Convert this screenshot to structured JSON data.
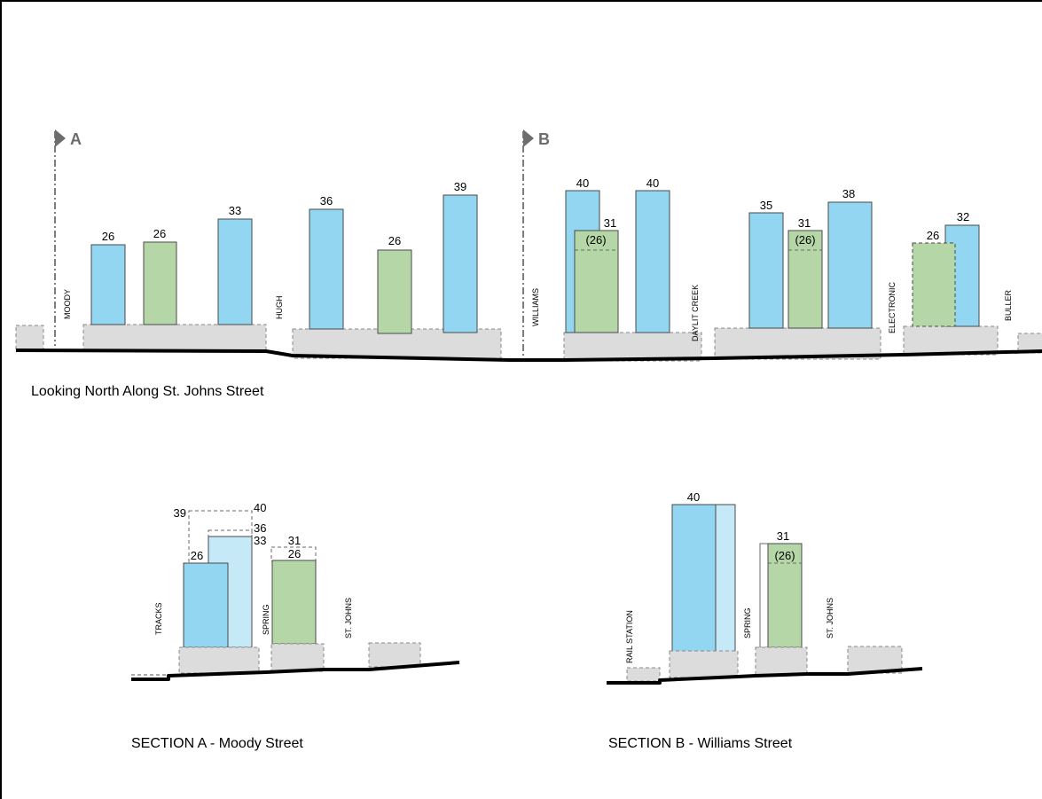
{
  "markers": {
    "a": "A",
    "b": "B"
  },
  "captions": {
    "elevation": "Looking North Along St. Johns Street",
    "section_a": "SECTION A - Moody Street",
    "section_b": "SECTION B - Williams Street"
  },
  "streets": {
    "moody": "MOODY",
    "hugh": "HUGH",
    "williams": "WILLIAMS",
    "daylit_creek": "DAYLIT CREEK",
    "electronic": "ELECTRONIC",
    "buller": "BULLER",
    "tracks": "TRACKS",
    "spring": "SPRING",
    "st_johns": "ST. JOHNS",
    "rail_station": "RAIL STATION"
  },
  "elevation_heights": {
    "b1": "26",
    "b2": "26",
    "b3": "33",
    "b4": "36",
    "b5": "26",
    "b6": "39",
    "b7": "40",
    "b7_inner": "31",
    "b7_inner_alt": "(26)",
    "b8": "40",
    "b9": "35",
    "b10": "31",
    "b10_alt": "(26)",
    "b11": "38",
    "b12": "26",
    "b13": "32"
  },
  "section_a_heights": {
    "dashed_left": "39",
    "dashed_right": "40",
    "light_top": "36",
    "light_side": "33",
    "blue": "26",
    "green_dashed": "31",
    "green": "26"
  },
  "section_b_heights": {
    "tower": "40",
    "green_top": "31",
    "green_alt": "(26)"
  },
  "colors": {
    "tower_blue": "#93d6f2",
    "tower_light_blue": "#c6e9f8",
    "midrise_green": "#b5d7a8",
    "podium_grey": "#dcdcdc"
  }
}
